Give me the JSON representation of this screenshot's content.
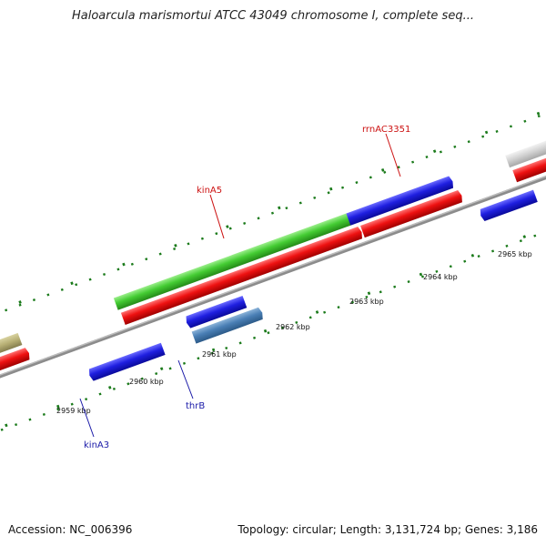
{
  "title": "Haloarcula marismortui ATCC 43049 chromosome I, complete seq...",
  "footer": {
    "accession": "Accession: NC_006396",
    "summary": "Topology: circular; Length: 3,131,724 bp; Genes: 3,186"
  },
  "colors": {
    "backbone": "#8c8c8c",
    "tick": "#1a7a1a",
    "forward_gene": "#1f1fe0",
    "reverse_gene": "#ee1111",
    "rrna": "#44cc33",
    "highlight_gene": "#4a7fb5",
    "other_gene": "#c8c8c8",
    "olive_gene": "#b5ad72",
    "label_red": "#cc1111",
    "label_blue": "#1a1aa8"
  },
  "kbp_ticks": [
    {
      "label": "2959 kbp"
    },
    {
      "label": "2960 kbp"
    },
    {
      "label": "2961 kbp"
    },
    {
      "label": "2962 kbp"
    },
    {
      "label": "2963 kbp"
    },
    {
      "label": "2964 kbp"
    },
    {
      "label": "2965 kbp"
    }
  ],
  "gene_labels": {
    "rrnAC3351": "rrnAC3351",
    "kinA5": "kinA5",
    "thrB": "thrB",
    "kinA3": "kinA3"
  }
}
